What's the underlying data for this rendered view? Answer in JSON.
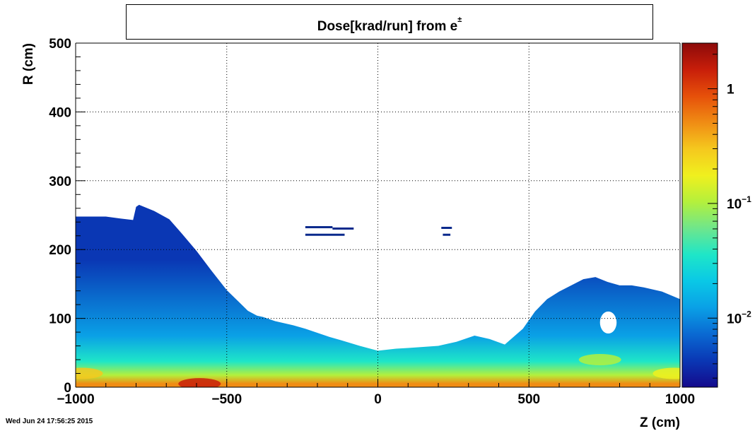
{
  "title": {
    "main": "Dose[krad/run] from e",
    "superscript": "±"
  },
  "date_stamp": "Wed Jun 24 17:56:25 2015",
  "chart_data": {
    "type": "heatmap",
    "title": "Dose[krad/run] from e±",
    "xlabel": "Z (cm)",
    "ylabel": "R (cm)",
    "xlim": [
      -1000,
      1000
    ],
    "ylim": [
      0,
      500
    ],
    "x_ticks": [
      -1000,
      -500,
      0,
      500,
      1000
    ],
    "x_tick_labels": [
      "−1000",
      "−500",
      "0",
      "500",
      "1000"
    ],
    "y_ticks": [
      0,
      100,
      200,
      300,
      400,
      500
    ],
    "y_tick_labels": [
      "0",
      "100",
      "200",
      "300",
      "400",
      "500"
    ],
    "grid": true,
    "z_scale": "log",
    "z_range": [
      0.0025,
      2.5
    ],
    "z_ticks": [
      0.01,
      0.1,
      1
    ],
    "z_tick_labels": [
      {
        "base": "10",
        "exp": "−2"
      },
      {
        "base": "10",
        "exp": "−1"
      },
      {
        "base": "1",
        "exp": ""
      }
    ],
    "colormap": [
      "#140a8c",
      "#0a37b4",
      "#0a69d2",
      "#0aa0e6",
      "#0ac8e6",
      "#1ee6c8",
      "#6ee68c",
      "#b4f03c",
      "#f0f01e",
      "#f5c81e",
      "#f08c14",
      "#e6500a",
      "#c81e0a",
      "#8c0a0a"
    ],
    "outer_boundary": {
      "z": [
        -1000,
        -900,
        -850,
        -810,
        -800,
        -790,
        -740,
        -690,
        -650,
        -600,
        -550,
        -500,
        -460,
        -430,
        -400,
        -380,
        -340,
        -280,
        -240,
        -160,
        -120,
        -60,
        0,
        60,
        100,
        200,
        260,
        320,
        370,
        420,
        480,
        520,
        560,
        600,
        640,
        680,
        720,
        760,
        800,
        840,
        880,
        940,
        1000
      ],
      "r": [
        248,
        248,
        245,
        243,
        262,
        265,
        256,
        244,
        224,
        198,
        169,
        141,
        124,
        111,
        104,
        102,
        96,
        90,
        85,
        73,
        68,
        60,
        53,
        56,
        57,
        60,
        66,
        75,
        70,
        62,
        85,
        110,
        128,
        139,
        148,
        157,
        160,
        153,
        148,
        148,
        145,
        139,
        128
      ]
    },
    "band_values": [
      {
        "r_max": 10,
        "dose": 0.5
      },
      {
        "r_max": 25,
        "dose": 0.12
      },
      {
        "r_max": 50,
        "dose": 0.04
      },
      {
        "r_max": 100,
        "dose": 0.015
      },
      {
        "r_max": 270,
        "dose": 0.005
      }
    ],
    "hot_spots": [
      {
        "z": -590,
        "r": 5,
        "dose": 1.2
      },
      {
        "z": -980,
        "r": 20,
        "dose": 0.25
      },
      {
        "z": 980,
        "r": 20,
        "dose": 0.15
      },
      {
        "z": 735,
        "r": 40,
        "dose": 0.12
      }
    ],
    "void_region": {
      "z": [
        735,
        790
      ],
      "r": [
        78,
        110
      ]
    },
    "floating_segments": [
      {
        "z": [
          -240,
          -150
        ],
        "r": 232
      },
      {
        "z": [
          -150,
          -80
        ],
        "r": 230
      },
      {
        "z": [
          -240,
          -110
        ],
        "r": 221
      },
      {
        "z": [
          210,
          245
        ],
        "r": 231
      },
      {
        "z": [
          215,
          240
        ],
        "r": 221
      }
    ]
  }
}
